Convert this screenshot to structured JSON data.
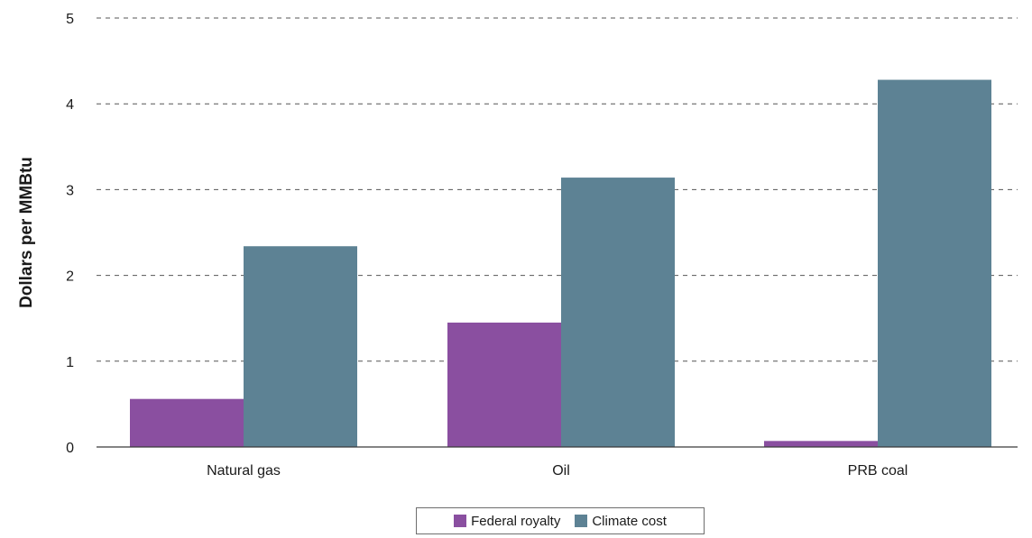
{
  "chart_data": {
    "type": "bar",
    "categories": [
      "Natural gas",
      "Oil",
      "PRB coal"
    ],
    "series": [
      {
        "name": "Federal royalty",
        "values": [
          0.56,
          1.45,
          0.07
        ],
        "color": "#8a4fa0"
      },
      {
        "name": "Climate cost",
        "values": [
          2.34,
          3.14,
          4.28
        ],
        "color": "#5d8294"
      }
    ],
    "ylabel": "Dollars per MMBtu",
    "xlabel": "",
    "ylim": [
      0,
      5
    ],
    "yticks": [
      0,
      1,
      2,
      3,
      4,
      5
    ],
    "grid": "horizontal dashed",
    "legend_position": "bottom-center"
  }
}
